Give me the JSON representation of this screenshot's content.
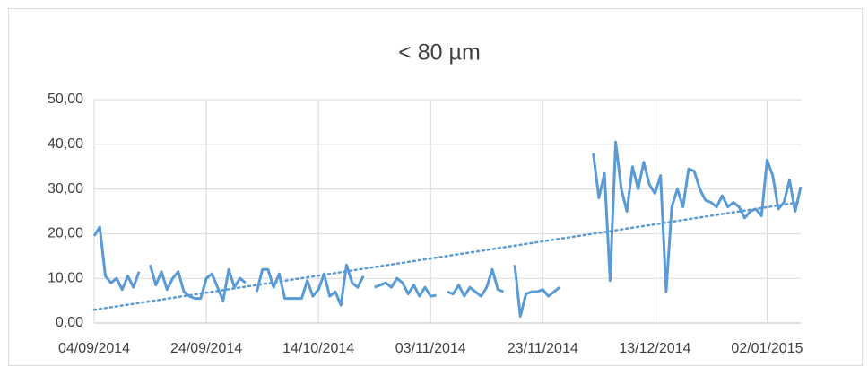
{
  "chart_data": {
    "type": "line",
    "title": "< 80 µm",
    "x": [
      "2014-09-04",
      "2014-09-05",
      "2014-09-06",
      "2014-09-07",
      "2014-09-08",
      "2014-09-09",
      "2014-09-10",
      "2014-09-11",
      "2014-09-12",
      "2014-09-13",
      "2014-09-14",
      "2014-09-15",
      "2014-09-16",
      "2014-09-17",
      "2014-09-18",
      "2014-09-19",
      "2014-09-20",
      "2014-09-21",
      "2014-09-22",
      "2014-09-23",
      "2014-09-24",
      "2014-09-25",
      "2014-09-26",
      "2014-09-27",
      "2014-09-28",
      "2014-09-29",
      "2014-09-30",
      "2014-10-01",
      "2014-10-02",
      "2014-10-03",
      "2014-10-04",
      "2014-10-05",
      "2014-10-06",
      "2014-10-07",
      "2014-10-08",
      "2014-10-09",
      "2014-10-10",
      "2014-10-11",
      "2014-10-12",
      "2014-10-13",
      "2014-10-14",
      "2014-10-15",
      "2014-10-16",
      "2014-10-17",
      "2014-10-18",
      "2014-10-19",
      "2014-10-20",
      "2014-10-21",
      "2014-10-22",
      "2014-10-23",
      "2014-10-24",
      "2014-10-25",
      "2014-10-26",
      "2014-10-27",
      "2014-10-28",
      "2014-10-29",
      "2014-10-30",
      "2014-10-31",
      "2014-11-01",
      "2014-11-02",
      "2014-11-03",
      "2014-11-04",
      "2014-11-05",
      "2014-11-06",
      "2014-11-07",
      "2014-11-08",
      "2014-11-09",
      "2014-11-10",
      "2014-11-11",
      "2014-11-12",
      "2014-11-13",
      "2014-11-14",
      "2014-11-15",
      "2014-11-16",
      "2014-11-17",
      "2014-11-18",
      "2014-11-19",
      "2014-11-20",
      "2014-11-21",
      "2014-11-22",
      "2014-11-23",
      "2014-11-24",
      "2014-11-25",
      "2014-11-26",
      "2014-11-27",
      "2014-11-28",
      "2014-11-29",
      "2014-11-30",
      "2014-12-01",
      "2014-12-02",
      "2014-12-03",
      "2014-12-04",
      "2014-12-05",
      "2014-12-06",
      "2014-12-07",
      "2014-12-08",
      "2014-12-09",
      "2014-12-10",
      "2014-12-11",
      "2014-12-12",
      "2014-12-13",
      "2014-12-14",
      "2014-12-15",
      "2014-12-16",
      "2014-12-17",
      "2014-12-18",
      "2014-12-19",
      "2014-12-20",
      "2014-12-21",
      "2014-12-22",
      "2014-12-23",
      "2014-12-24",
      "2014-12-25",
      "2014-12-26",
      "2014-12-27",
      "2014-12-28",
      "2014-12-29",
      "2014-12-30",
      "2014-12-31",
      "2015-01-01",
      "2015-01-02",
      "2015-01-03",
      "2015-01-04",
      "2015-01-05",
      "2015-01-06",
      "2015-01-07",
      "2015-01-08"
    ],
    "series": [
      {
        "color": "#5b9bd5",
        "values": [
          19.5,
          21.5,
          10.5,
          9,
          10,
          7.5,
          10.5,
          8,
          11.5,
          null,
          13,
          8.5,
          11.5,
          7.5,
          10,
          11.5,
          7,
          6,
          5.5,
          5.5,
          10,
          11,
          8,
          5,
          12,
          8,
          10,
          9,
          null,
          7,
          12,
          12,
          8,
          11,
          5.5,
          5.5,
          5.5,
          5.5,
          9.5,
          6,
          7.5,
          11,
          6,
          7,
          4,
          13,
          9,
          8,
          10.5,
          null,
          8,
          8.5,
          9,
          8,
          10,
          9,
          6.5,
          8.5,
          6,
          8,
          6,
          6.2,
          null,
          7,
          6.5,
          8.5,
          6,
          8,
          7,
          6,
          8,
          12,
          7.5,
          7,
          null,
          13,
          1.5,
          6.5,
          7,
          7,
          7.5,
          6,
          7,
          8,
          null,
          null,
          null,
          null,
          null,
          38,
          28,
          33.5,
          9.5,
          40.5,
          30,
          25,
          35,
          30,
          36,
          31,
          29,
          33,
          7,
          26,
          30,
          26,
          34.5,
          34,
          30,
          27.5,
          27,
          26,
          28.5,
          26,
          27,
          26,
          23.5,
          25,
          25.5,
          24,
          36.5,
          33,
          25.5,
          27,
          32,
          25,
          30.5
        ]
      }
    ],
    "trendline": "linear",
    "xlim": [
      "2014-09-04",
      "2015-01-08"
    ],
    "xticks": [
      {
        "value": "2014-09-04",
        "label": "04/09/2014"
      },
      {
        "value": "2014-09-24",
        "label": "24/09/2014"
      },
      {
        "value": "2014-10-14",
        "label": "14/10/2014"
      },
      {
        "value": "2014-11-03",
        "label": "03/11/2014"
      },
      {
        "value": "2014-11-23",
        "label": "23/11/2014"
      },
      {
        "value": "2014-12-13",
        "label": "13/12/2014"
      },
      {
        "value": "2015-01-02",
        "label": "02/01/2015"
      }
    ],
    "ylim": [
      0,
      50
    ],
    "yticks": [
      {
        "value": 0,
        "label": "0,00"
      },
      {
        "value": 10,
        "label": "10,00"
      },
      {
        "value": 20,
        "label": "20,00"
      },
      {
        "value": 30,
        "label": "30,00"
      },
      {
        "value": 40,
        "label": "40,00"
      },
      {
        "value": 50,
        "label": "50,00"
      }
    ],
    "grid": true
  }
}
